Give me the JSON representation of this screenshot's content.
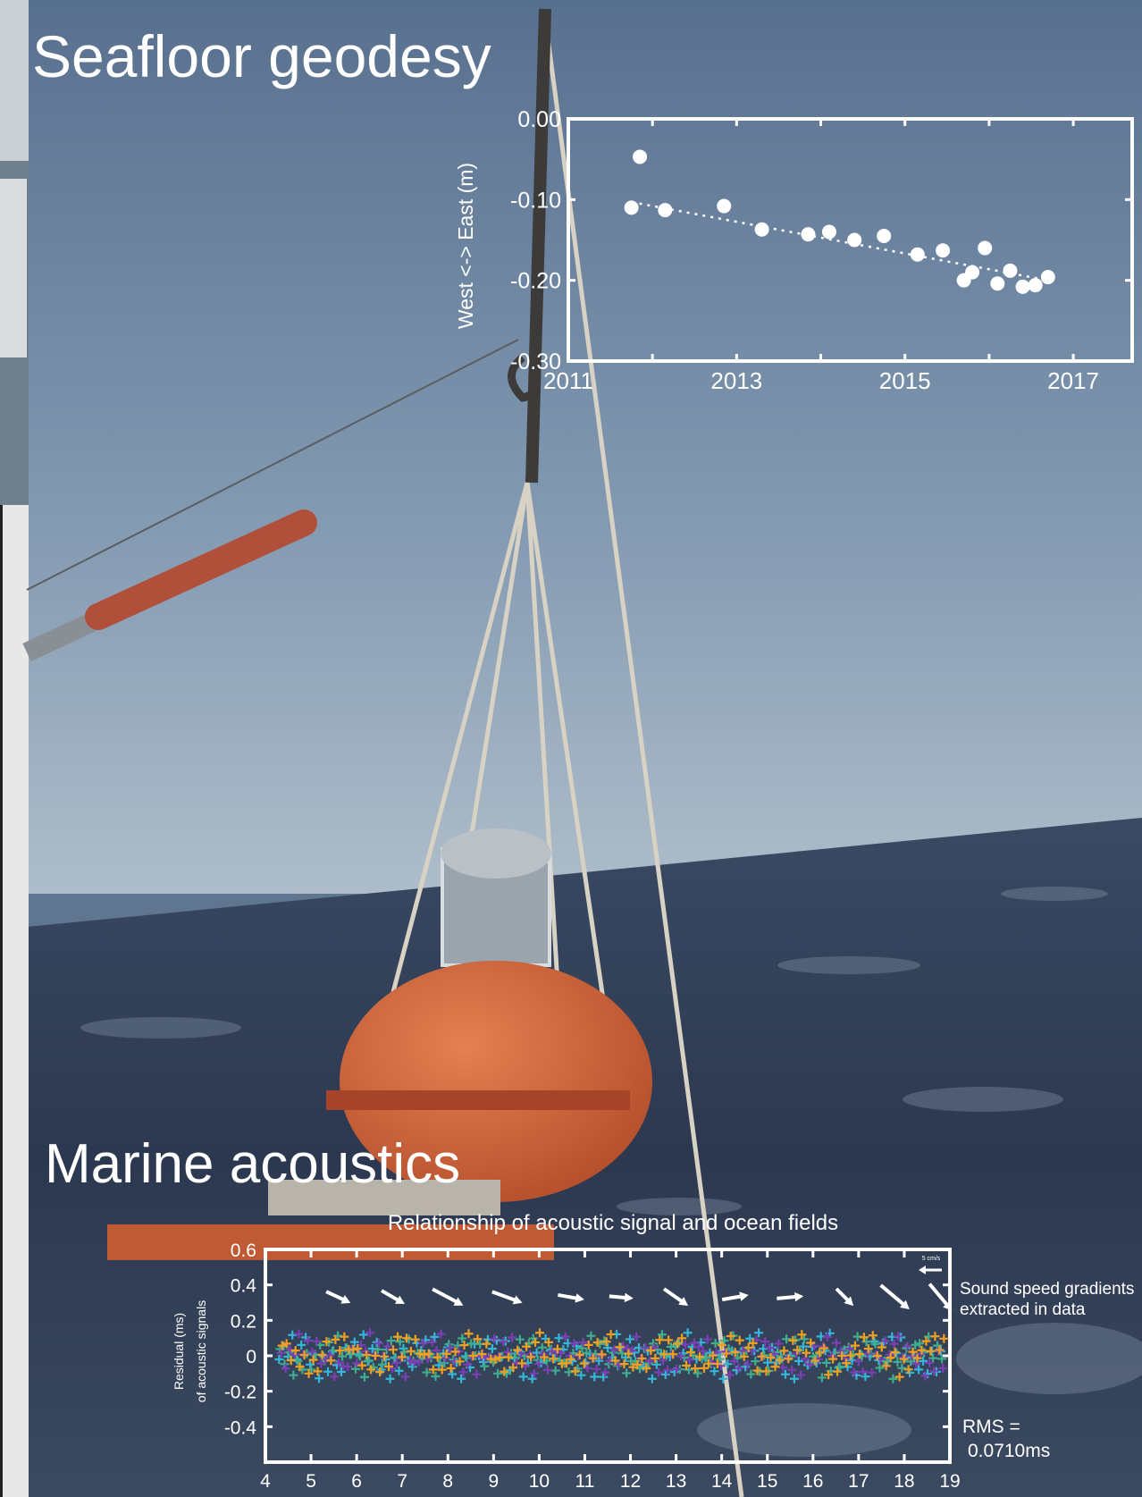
{
  "headings": {
    "top": "Seafloor geodesy",
    "bottom": "Marine acoustics"
  },
  "colors": {
    "sky_top": "#5d7391",
    "sky_bottom": "#a8b8c6",
    "sea": "#2e3a4f",
    "instrument": "#d0643b",
    "chart_white": "#ffffff",
    "series_orange": "#f0a020",
    "series_cyan": "#35b6d8",
    "series_purple": "#7a3fb5",
    "series_green": "#3fae8e"
  },
  "chart_data": [
    {
      "type": "scatter",
      "title": "",
      "xlabel": "",
      "ylabel": "West <-> East (m)",
      "xlim": [
        2011,
        2017.7
      ],
      "ylim": [
        -0.3,
        0.0
      ],
      "xticks": [
        "2011",
        "2013",
        "2015",
        "2017"
      ],
      "xtick_values": [
        2011,
        2013,
        2015,
        2017
      ],
      "yticks": [
        "0.00",
        "-0.10",
        "-0.20",
        "-0.30"
      ],
      "ytick_values": [
        0.0,
        -0.1,
        -0.2,
        -0.3
      ],
      "grid": false,
      "points": [
        {
          "x": 2011.75,
          "y": -0.11
        },
        {
          "x": 2011.85,
          "y": -0.047
        },
        {
          "x": 2012.15,
          "y": -0.113
        },
        {
          "x": 2012.85,
          "y": -0.108
        },
        {
          "x": 2013.3,
          "y": -0.137
        },
        {
          "x": 2013.85,
          "y": -0.143
        },
        {
          "x": 2014.1,
          "y": -0.14
        },
        {
          "x": 2014.4,
          "y": -0.15
        },
        {
          "x": 2014.75,
          "y": -0.145
        },
        {
          "x": 2015.15,
          "y": -0.168
        },
        {
          "x": 2015.45,
          "y": -0.163
        },
        {
          "x": 2015.7,
          "y": -0.2
        },
        {
          "x": 2015.8,
          "y": -0.19
        },
        {
          "x": 2015.95,
          "y": -0.16
        },
        {
          "x": 2016.1,
          "y": -0.204
        },
        {
          "x": 2016.25,
          "y": -0.188
        },
        {
          "x": 2016.4,
          "y": -0.208
        },
        {
          "x": 2016.55,
          "y": -0.206
        },
        {
          "x": 2016.7,
          "y": -0.196
        }
      ],
      "trend": {
        "x": [
          2011.75,
          2016.7
        ],
        "y": [
          -0.103,
          -0.2
        ]
      }
    },
    {
      "type": "scatter",
      "title": "Relationship of acoustic signal and ocean fields",
      "xlabel": "",
      "ylabel": [
        "Residual (ms)",
        "of acoustic signals"
      ],
      "xlim": [
        4,
        19
      ],
      "ylim": [
        -0.6,
        0.6
      ],
      "xticks": [
        "4",
        "5",
        "6",
        "7",
        "8",
        "9",
        "10",
        "11",
        "12",
        "13",
        "14",
        "15",
        "16",
        "17",
        "18",
        "19"
      ],
      "yticks": [
        "0.6",
        "0.4",
        "0.2",
        "0",
        "-0.2",
        "-0.4"
      ],
      "ytick_values": [
        0.6,
        0.4,
        0.2,
        0.0,
        -0.2,
        -0.4
      ],
      "grid": false,
      "residual_band": {
        "center": 0.0,
        "spread": 0.13,
        "x_range": [
          4.3,
          18.9
        ]
      },
      "series": [
        {
          "color": "#35b6d8",
          "values": [
            -0.02,
            0.03,
            -0.05,
            0.06,
            -0.08,
            0.01,
            0.07,
            -0.06,
            0.02,
            -0.09,
            0.05,
            -0.03,
            0.08,
            -0.01,
            -0.07,
            0.04
          ]
        },
        {
          "color": "#3fae8e",
          "values": [
            0.02,
            -0.04,
            0.05,
            -0.06,
            0.03,
            -0.02,
            0.06,
            -0.05,
            0.01,
            0.04,
            -0.07,
            0.02,
            -0.03,
            0.06,
            -0.04,
            0.03
          ]
        },
        {
          "color": "#7a3fb5",
          "values": [
            0.05,
            -0.06,
            0.02,
            -0.03,
            0.07,
            -0.05,
            0.03,
            -0.02,
            0.06,
            -0.04,
            0.01,
            0.05,
            -0.06,
            0.02,
            -0.01,
            -0.03
          ]
        },
        {
          "color": "#f0a020",
          "values": [
            0.01,
            0.04,
            -0.03,
            0.05,
            -0.02,
            0.06,
            -0.04,
            0.03,
            -0.05,
            0.02,
            0.07,
            -0.06,
            0.04,
            -0.03,
            0.05,
            -0.01
          ]
        }
      ],
      "vectors": [
        {
          "x": 5.6,
          "angle_deg": 25,
          "length": 1.0
        },
        {
          "x": 6.8,
          "angle_deg": 30,
          "length": 1.0
        },
        {
          "x": 8.0,
          "angle_deg": 28,
          "length": 1.3
        },
        {
          "x": 9.3,
          "angle_deg": 20,
          "length": 1.2
        },
        {
          "x": 10.7,
          "angle_deg": 10,
          "length": 1.0
        },
        {
          "x": 11.8,
          "angle_deg": 5,
          "length": 0.9
        },
        {
          "x": 13.0,
          "angle_deg": 35,
          "length": 1.1
        },
        {
          "x": 14.3,
          "angle_deg": -10,
          "length": 1.0
        },
        {
          "x": 15.5,
          "angle_deg": -5,
          "length": 1.0
        },
        {
          "x": 16.7,
          "angle_deg": 45,
          "length": 0.9
        },
        {
          "x": 17.8,
          "angle_deg": 40,
          "length": 1.4
        },
        {
          "x": 18.8,
          "angle_deg": 50,
          "length": 1.3
        }
      ],
      "scale_label": "5 cm/s",
      "annotations": {
        "gradients": [
          "Sound speed gradients",
          "extracted in data"
        ],
        "rms": [
          "RMS =",
          "0.0710ms"
        ]
      }
    }
  ]
}
